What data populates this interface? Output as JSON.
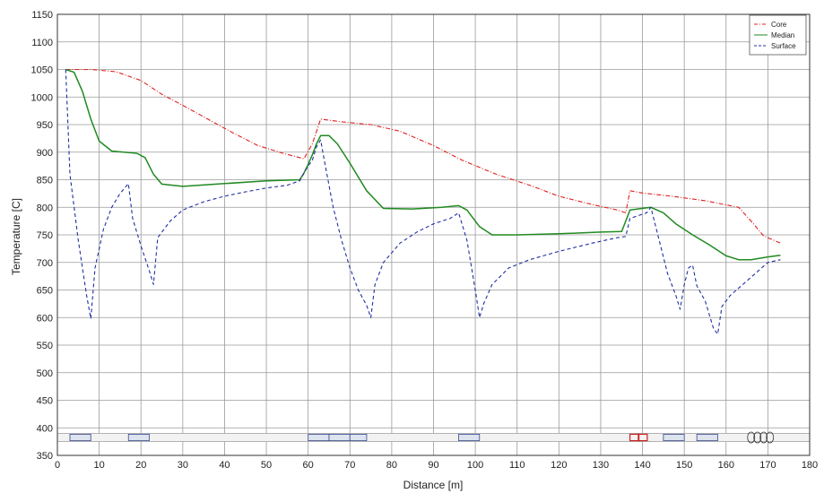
{
  "chart_data": {
    "type": "line",
    "xlabel": "Distance [m]",
    "ylabel": "Temperature [C]",
    "xlim": [
      0,
      180
    ],
    "ylim": [
      350,
      1150
    ],
    "x_ticks": [
      0,
      10,
      20,
      30,
      40,
      50,
      60,
      70,
      80,
      90,
      100,
      110,
      120,
      130,
      140,
      150,
      160,
      170,
      180
    ],
    "y_ticks": [
      350,
      400,
      450,
      500,
      550,
      600,
      650,
      700,
      750,
      800,
      850,
      900,
      950,
      1000,
      1050,
      1100,
      1150
    ],
    "grid": true,
    "legend_position": "top-right",
    "series": [
      {
        "name": "Core",
        "color": "#e02020",
        "dash": "dashdot",
        "points": [
          [
            2,
            1050
          ],
          [
            8,
            1050
          ],
          [
            14,
            1046
          ],
          [
            20,
            1030
          ],
          [
            25,
            1005
          ],
          [
            30,
            985
          ],
          [
            36,
            960
          ],
          [
            42,
            935
          ],
          [
            48,
            912
          ],
          [
            54,
            898
          ],
          [
            59,
            888
          ],
          [
            61,
            915
          ],
          [
            63,
            960
          ],
          [
            68,
            955
          ],
          [
            75,
            950
          ],
          [
            82,
            938
          ],
          [
            90,
            912
          ],
          [
            97,
            885
          ],
          [
            105,
            860
          ],
          [
            113,
            840
          ],
          [
            120,
            820
          ],
          [
            128,
            805
          ],
          [
            134,
            795
          ],
          [
            136,
            790
          ],
          [
            137,
            830
          ],
          [
            140,
            826
          ],
          [
            147,
            820
          ],
          [
            155,
            812
          ],
          [
            163,
            800
          ],
          [
            166,
            775
          ],
          [
            169,
            748
          ],
          [
            173,
            735
          ]
        ]
      },
      {
        "name": "Median",
        "color": "#208a20",
        "dash": "solid",
        "points": [
          [
            2,
            1050
          ],
          [
            4,
            1045
          ],
          [
            6,
            1010
          ],
          [
            8,
            960
          ],
          [
            10,
            920
          ],
          [
            13,
            902
          ],
          [
            16,
            900
          ],
          [
            19,
            898
          ],
          [
            21,
            890
          ],
          [
            23,
            860
          ],
          [
            25,
            842
          ],
          [
            30,
            838
          ],
          [
            40,
            843
          ],
          [
            50,
            848
          ],
          [
            58,
            850
          ],
          [
            59,
            862
          ],
          [
            60,
            878
          ],
          [
            61,
            895
          ],
          [
            62,
            915
          ],
          [
            63,
            930
          ],
          [
            65,
            930
          ],
          [
            67,
            915
          ],
          [
            70,
            880
          ],
          [
            74,
            830
          ],
          [
            78,
            798
          ],
          [
            85,
            797
          ],
          [
            92,
            800
          ],
          [
            96,
            803
          ],
          [
            98,
            795
          ],
          [
            101,
            765
          ],
          [
            104,
            750
          ],
          [
            110,
            750
          ],
          [
            120,
            752
          ],
          [
            130,
            755
          ],
          [
            135,
            756
          ],
          [
            136,
            775
          ],
          [
            137,
            795
          ],
          [
            142,
            800
          ],
          [
            145,
            790
          ],
          [
            148,
            770
          ],
          [
            152,
            750
          ],
          [
            156,
            732
          ],
          [
            160,
            712
          ],
          [
            163,
            705
          ],
          [
            166,
            705
          ],
          [
            170,
            710
          ],
          [
            173,
            713
          ]
        ]
      },
      {
        "name": "Surface",
        "color": "#2030a0",
        "dash": "dashed",
        "points": [
          [
            2,
            1050
          ],
          [
            3,
            860
          ],
          [
            5,
            740
          ],
          [
            7,
            640
          ],
          [
            8,
            598
          ],
          [
            9,
            690
          ],
          [
            11,
            760
          ],
          [
            13,
            800
          ],
          [
            15,
            825
          ],
          [
            17,
            843
          ],
          [
            18,
            780
          ],
          [
            20,
            730
          ],
          [
            22,
            685
          ],
          [
            23,
            660
          ],
          [
            24,
            745
          ],
          [
            27,
            775
          ],
          [
            30,
            795
          ],
          [
            35,
            810
          ],
          [
            40,
            820
          ],
          [
            45,
            828
          ],
          [
            50,
            835
          ],
          [
            55,
            840
          ],
          [
            58,
            848
          ],
          [
            59,
            862
          ],
          [
            60,
            875
          ],
          [
            61,
            885
          ],
          [
            62,
            910
          ],
          [
            63,
            922
          ],
          [
            64,
            880
          ],
          [
            66,
            800
          ],
          [
            68,
            740
          ],
          [
            70,
            690
          ],
          [
            72,
            650
          ],
          [
            74,
            622
          ],
          [
            75,
            600
          ],
          [
            76,
            660
          ],
          [
            78,
            700
          ],
          [
            82,
            735
          ],
          [
            86,
            755
          ],
          [
            90,
            770
          ],
          [
            94,
            780
          ],
          [
            96,
            790
          ],
          [
            98,
            740
          ],
          [
            100,
            650
          ],
          [
            101,
            600
          ],
          [
            102,
            625
          ],
          [
            104,
            660
          ],
          [
            108,
            690
          ],
          [
            113,
            705
          ],
          [
            120,
            720
          ],
          [
            128,
            735
          ],
          [
            134,
            745
          ],
          [
            136,
            747
          ],
          [
            137,
            780
          ],
          [
            139,
            785
          ],
          [
            141,
            790
          ],
          [
            142,
            800
          ],
          [
            144,
            740
          ],
          [
            146,
            680
          ],
          [
            148,
            640
          ],
          [
            149,
            615
          ],
          [
            150,
            660
          ],
          [
            151,
            690
          ],
          [
            152,
            695
          ],
          [
            153,
            658
          ],
          [
            155,
            630
          ],
          [
            157,
            580
          ],
          [
            158,
            570
          ],
          [
            159,
            620
          ],
          [
            161,
            640
          ],
          [
            164,
            660
          ],
          [
            167,
            680
          ],
          [
            170,
            700
          ],
          [
            173,
            705
          ]
        ]
      }
    ]
  },
  "legend": {
    "core": "Core",
    "median": "Median",
    "surface": "Surface"
  }
}
